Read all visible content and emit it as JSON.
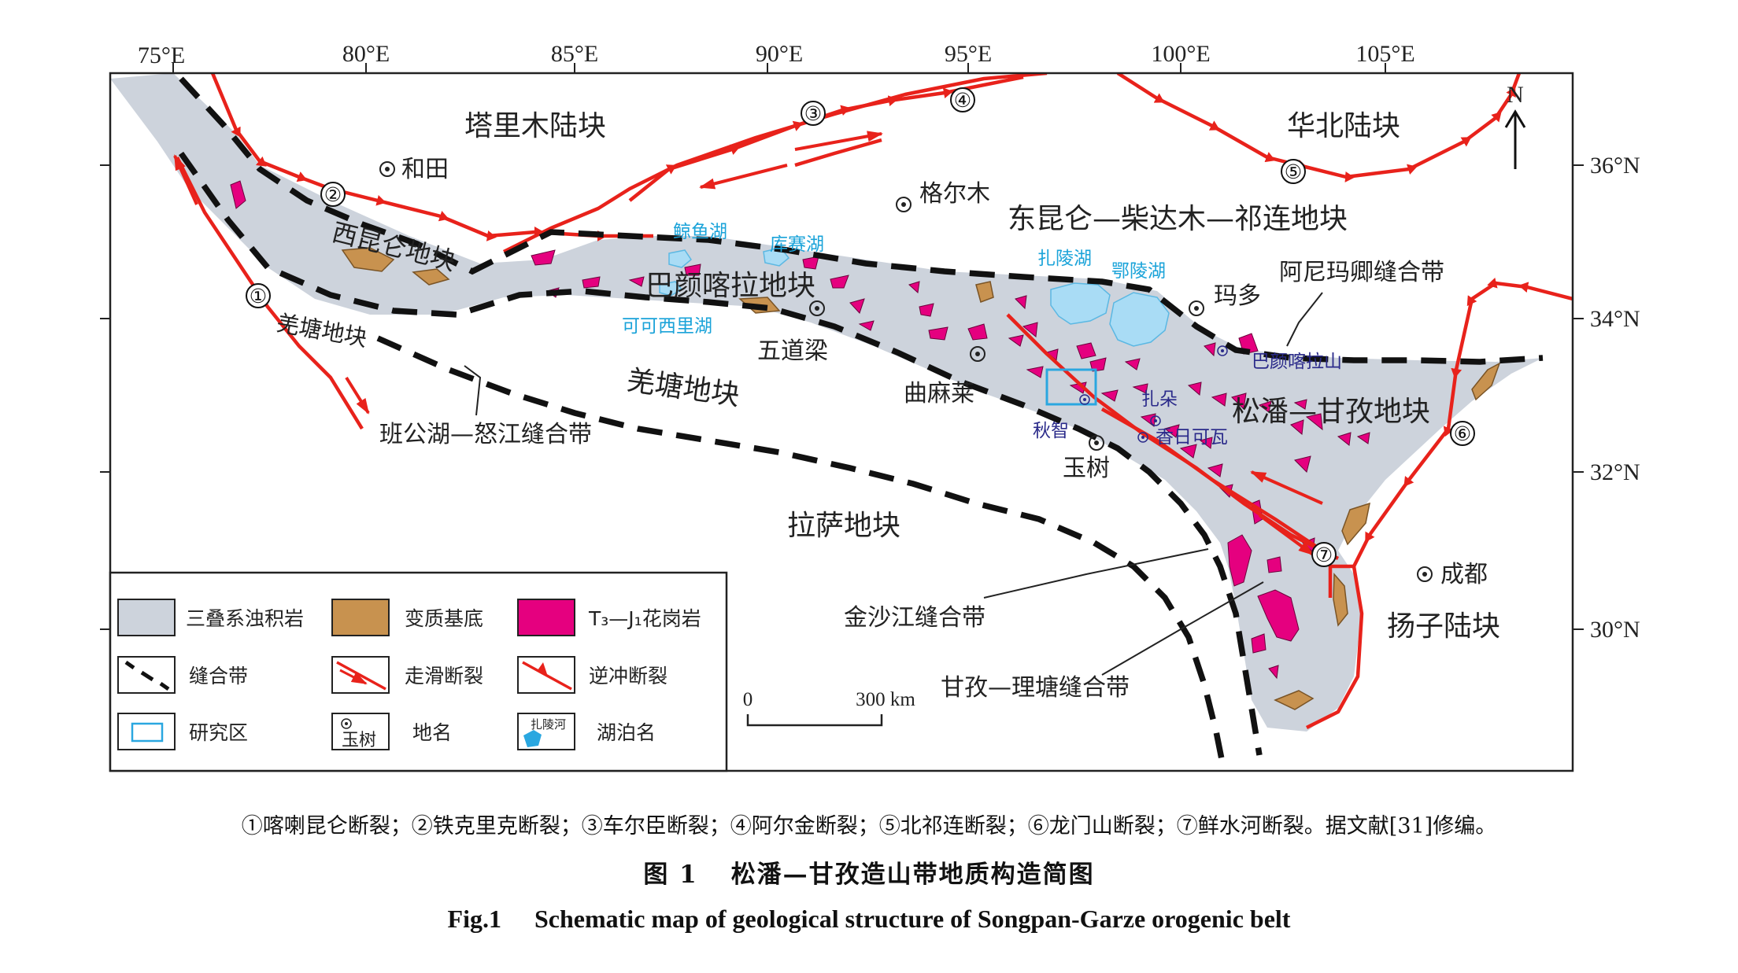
{
  "longitudes": [
    "75°E",
    "80°E",
    "85°E",
    "90°E",
    "95°E",
    "100°E",
    "105°E"
  ],
  "latitudes": [
    "36°N",
    "34°N",
    "32°N",
    "30°N"
  ],
  "north": "N",
  "blocks": {
    "tarim": "塔里木陆块",
    "north_china": "华北陆块",
    "west_kunlun": "西昆仑地块",
    "qiangtang_w": "羌塘地块",
    "east_kunlun": "东昆仑—柴达木—祁连地块",
    "bayan_har": "巴颜喀拉地块",
    "qiangtang": "羌塘地块",
    "lhasa": "拉萨地块",
    "songpan": "松潘—甘孜地块",
    "yangtze": "扬子陆块"
  },
  "places": {
    "hotan": "和田",
    "golmud": "格尔木",
    "wudaoliang": "五道梁",
    "qumalai": "曲麻莱",
    "maduo": "玛多",
    "yushu": "玉树",
    "chengdu": "成都"
  },
  "lakes": {
    "jingyu": "鲸鱼湖",
    "kusai": "库赛湖",
    "kekexili": "可可西里湖",
    "zhaling": "扎陵湖",
    "eling": "鄂陵湖"
  },
  "study_sites": {
    "bayankala_shan": "巴颜喀拉山",
    "zhaduo": "扎朵",
    "qiuzhi": "秋智",
    "xiangrikewa": "香日可瓦"
  },
  "sutures": {
    "anyimaqen": "阿尼玛卿缝合带",
    "bangong": "班公湖—怒江缝合带",
    "jinsha": "金沙江缝合带",
    "ganzi": "甘孜—理塘缝合带"
  },
  "fault_numbers": [
    "①",
    "②",
    "③",
    "④",
    "⑤",
    "⑥",
    "⑦"
  ],
  "scale": {
    "zero": "0",
    "label": "300 km"
  },
  "legend": {
    "triassic": "三叠系浊积岩",
    "basement": "变质基底",
    "granite": "T₃—J₁花岗岩",
    "suture": "缝合带",
    "strike_slip": "走滑断裂",
    "thrust": "逆冲断裂",
    "study_area": "研究区",
    "place_name": "地名",
    "place_sample": "玉树",
    "lake_name": "湖泊名",
    "lake_sample": "扎陵河"
  },
  "colors": {
    "sediment": "#cdd3dc",
    "basement": "#c8924f",
    "granite": "#e5007f",
    "fault": "#e8221b",
    "lake": "#a9dcf5",
    "lake_text": "#1aa3d9",
    "study": "#2aa7e0"
  },
  "caption": {
    "note": "①喀喇昆仑断裂；②铁克里克断裂；③车尔臣断裂；④阿尔金断裂；⑤北祁连断裂；⑥龙门山断裂；⑦鲜水河断裂。据文献[31]修编。",
    "cn_label": "图 1",
    "cn_title": "松潘—甘孜造山带地质构造简图",
    "en_label": "Fig.1",
    "en_title": "Schematic map of geological structure of Songpan-Garze orogenic belt"
  }
}
